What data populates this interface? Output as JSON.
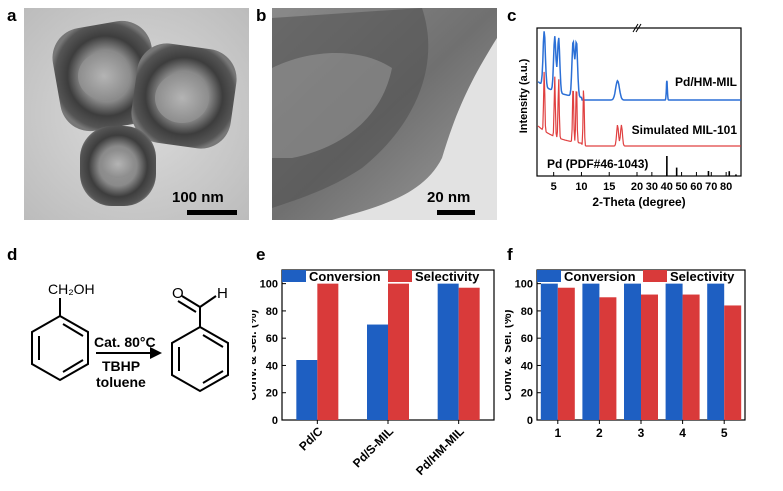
{
  "panels": {
    "a": {
      "label": "a",
      "scale": "100 nm"
    },
    "b": {
      "label": "b",
      "scale": "20 nm"
    },
    "c": {
      "label": "c"
    },
    "d": {
      "label": "d"
    },
    "e": {
      "label": "e"
    },
    "f": {
      "label": "f"
    }
  },
  "reaction": {
    "reactant_group": "CH₂OH",
    "product_o": "O",
    "product_h": "H",
    "condition_top": "Cat. 80°C",
    "condition_1": "TBHP",
    "condition_2": "toluene"
  },
  "colors": {
    "conversion": "#1e5fc2",
    "selectivity": "#d93a3a",
    "xrd_hm": "#2b6fd6",
    "xrd_sim": "#e04040"
  },
  "chart_data": [
    {
      "type": "line",
      "panel": "c",
      "xlabel": "2-Theta (degree)",
      "ylabel": "Intensity (a.u.)",
      "xticks": [
        5,
        10,
        15,
        20,
        30,
        40,
        50,
        60,
        70,
        80
      ],
      "xtick_labels": [
        "5",
        "10",
        "15",
        "20",
        "30",
        "40",
        "50",
        "60",
        "70",
        "80"
      ],
      "series": [
        {
          "name": "Pd/HM-MIL",
          "peaks": [
            3.3,
            5.2,
            5.9,
            8.5,
            9.1,
            16.5,
            40.1
          ]
        },
        {
          "name": "Simulated MIL-101",
          "peaks": [
            3.3,
            5.2,
            5.9,
            8.5,
            9.1,
            10.4,
            16.5,
            17.2
          ]
        },
        {
          "name": "Pd (PDF#46-1043)",
          "peaks": [
            40.1,
            46.7,
            68.1,
            82.1,
            86.6
          ],
          "intensities": [
            100,
            42,
            25,
            24,
            8
          ]
        }
      ]
    },
    {
      "type": "bar",
      "panel": "e",
      "ylabel": "Conv. & Sel. (%)",
      "ylim": [
        0,
        110
      ],
      "yticks": [
        0,
        20,
        40,
        60,
        80,
        100
      ],
      "categories": [
        "Pd/C",
        "Pd/S-MIL",
        "Pd/HM-MIL"
      ],
      "series": [
        {
          "name": "Conversion",
          "values": [
            44,
            70,
            100
          ]
        },
        {
          "name": "Selectivity",
          "values": [
            100,
            100,
            97
          ]
        }
      ],
      "legend": "top"
    },
    {
      "type": "bar",
      "panel": "f",
      "ylabel": "Conv. & Sel. (%)",
      "ylim": [
        0,
        110
      ],
      "yticks": [
        0,
        20,
        40,
        60,
        80,
        100
      ],
      "categories": [
        "1",
        "2",
        "3",
        "4",
        "5"
      ],
      "series": [
        {
          "name": "Conversion",
          "values": [
            100,
            100,
            100,
            100,
            100
          ]
        },
        {
          "name": "Selectivity",
          "values": [
            97,
            90,
            92,
            92,
            84
          ]
        }
      ],
      "legend": "top"
    }
  ]
}
